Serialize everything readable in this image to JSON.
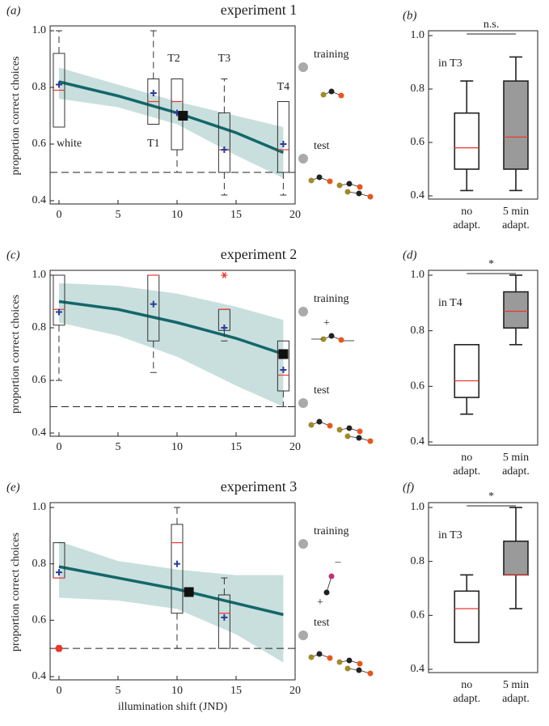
{
  "chart_data": [
    {
      "type": "box",
      "panel_label": "(a)",
      "title": "experiment 1",
      "ylabel": "proportion correct choices",
      "xlim": [
        -0.75,
        20
      ],
      "ylim": [
        0.4,
        1.0
      ],
      "xticks": [
        0,
        5,
        10,
        15,
        20
      ],
      "yticks": [
        0.4,
        0.6,
        0.8,
        {
          "value": 1,
          "label": "1.0"
        }
      ],
      "chance": 0.5,
      "box_color": "#333333",
      "median_color": "#e8392f",
      "mean_color": "#2a3c9a",
      "boxes": [
        {
          "label": "white",
          "x": 0,
          "whisker_low": 0.66,
          "q1": 0.66,
          "median": 0.79,
          "q3": 0.92,
          "whisker_high": 1.0,
          "mean": 0.81
        },
        {
          "label": "T1",
          "x": 8,
          "whisker_low": 0.67,
          "q1": 0.67,
          "median": 0.75,
          "q3": 0.83,
          "whisker_high": 1.0,
          "mean": 0.78
        },
        {
          "label": "T2",
          "x": 10,
          "whisker_low": 0.5,
          "q1": 0.58,
          "median": 0.75,
          "q3": 0.83,
          "whisker_high": 0.83,
          "mean": 0.71
        },
        {
          "label": "T3",
          "x": 14,
          "whisker_low": 0.42,
          "q1": 0.5,
          "median": 0.58,
          "q3": 0.71,
          "whisker_high": 0.83,
          "mean": 0.58
        },
        {
          "label": "T4",
          "x": 19,
          "whisker_low": 0.42,
          "q1": 0.5,
          "median": 0.58,
          "q3": 0.75,
          "whisker_high": 0.75,
          "mean": 0.6
        }
      ],
      "fit": {
        "x": [
          0,
          5,
          10,
          15,
          19
        ],
        "y": [
          0.82,
          0.77,
          0.71,
          0.64,
          0.57
        ],
        "lower": [
          0.76,
          0.73,
          0.67,
          0.56,
          0.48
        ],
        "upper": [
          0.87,
          0.81,
          0.75,
          0.7,
          0.66
        ],
        "color": "#13676a",
        "band_color": "#c8dfdd"
      },
      "highlight": {
        "x": 10.5,
        "y": 0.7
      },
      "schematic": {
        "training": "training",
        "test": "test",
        "signs": []
      }
    },
    {
      "type": "box",
      "panel_label": "(b)",
      "annotation": "in T3",
      "significance": "n.s.",
      "categories": [
        [
          "no",
          "adapt."
        ],
        [
          "5 min",
          "adapt."
        ]
      ],
      "ylim": [
        0.4,
        1.0
      ],
      "yticks": [
        0.4,
        0.6,
        0.8,
        {
          "value": 1,
          "label": "1.0"
        }
      ],
      "box_color": "#222222",
      "median_color": "#e8392f",
      "boxes": [
        {
          "whisker_low": 0.42,
          "q1": 0.5,
          "median": 0.58,
          "q3": 0.71,
          "whisker_high": 0.83,
          "fill": "#ffffff"
        },
        {
          "whisker_low": 0.42,
          "q1": 0.5,
          "median": 0.62,
          "q3": 0.83,
          "whisker_high": 0.92,
          "fill": "#9a9a9a"
        }
      ]
    },
    {
      "type": "box",
      "panel_label": "(c)",
      "title": "experiment 2",
      "ylabel": "proportion correct choices",
      "xlim": [
        -0.75,
        20
      ],
      "ylim": [
        0.4,
        1.0
      ],
      "xticks": [
        0,
        5,
        10,
        15,
        20
      ],
      "yticks": [
        0.4,
        0.6,
        0.8,
        {
          "value": 1,
          "label": "1.0"
        }
      ],
      "chance": 0.5,
      "box_color": "#333333",
      "median_color": "#e8392f",
      "mean_color": "#2a3c9a",
      "boxes": [
        {
          "x": 0,
          "whisker_low": 0.6,
          "q1": 0.81,
          "median": 0.87,
          "q3": 1.0,
          "whisker_high": 1.0,
          "mean": 0.86
        },
        {
          "x": 8,
          "whisker_low": 0.63,
          "q1": 0.75,
          "median": 1.0,
          "q3": 1.0,
          "whisker_high": 1.0,
          "mean": 0.89
        },
        {
          "x": 14,
          "whisker_low": 0.75,
          "q1": 0.79,
          "median": 0.87,
          "q3": 0.87,
          "whisker_high": 0.87,
          "mean": 0.8
        },
        {
          "x": 19,
          "whisker_low": 0.5,
          "q1": 0.56,
          "median": 0.62,
          "q3": 0.75,
          "whisker_high": 0.75,
          "mean": 0.64
        }
      ],
      "outliers": [
        {
          "x": 14,
          "value": 1.0,
          "marker": "asterisk"
        }
      ],
      "outlier_color": "#e8392f",
      "fit": {
        "x": [
          0,
          5,
          10,
          15,
          19
        ],
        "y": [
          0.9,
          0.87,
          0.82,
          0.76,
          0.7
        ],
        "lower": [
          0.82,
          0.77,
          0.69,
          0.58,
          0.5
        ],
        "upper": [
          0.97,
          0.96,
          0.93,
          0.88,
          0.83
        ],
        "color": "#13676a",
        "band_color": "#c8dfdd"
      },
      "highlight": {
        "x": 19,
        "y": 0.7
      },
      "schematic": {
        "training": "training",
        "test": "test",
        "signs": [
          "+"
        ]
      }
    },
    {
      "type": "box",
      "panel_label": "(d)",
      "annotation": "in T4",
      "significance": "*",
      "categories": [
        [
          "no",
          "adapt."
        ],
        [
          "5 min",
          "adapt."
        ]
      ],
      "ylim": [
        0.4,
        1.0
      ],
      "yticks": [
        0.4,
        0.6,
        0.8,
        {
          "value": 1,
          "label": "1.0"
        }
      ],
      "box_color": "#222222",
      "median_color": "#e8392f",
      "boxes": [
        {
          "whisker_low": 0.5,
          "q1": 0.56,
          "median": 0.62,
          "q3": 0.75,
          "whisker_high": 0.75,
          "fill": "#ffffff"
        },
        {
          "whisker_low": 0.75,
          "q1": 0.81,
          "median": 0.87,
          "q3": 0.94,
          "whisker_high": 1.0,
          "fill": "#9a9a9a"
        }
      ]
    },
    {
      "type": "box",
      "panel_label": "(e)",
      "title": "experiment 3",
      "ylabel": "proportion correct choices",
      "xlabel": "illumination shift (JND)",
      "xlim": [
        -0.75,
        20
      ],
      "ylim": [
        0.4,
        1.0
      ],
      "xticks": [
        0,
        5,
        10,
        15,
        20
      ],
      "yticks": [
        0.4,
        0.6,
        0.8,
        {
          "value": 1,
          "label": "1.0"
        }
      ],
      "chance": 0.5,
      "box_color": "#333333",
      "median_color": "#e8392f",
      "mean_color": "#2a3c9a",
      "boxes": [
        {
          "x": 0,
          "whisker_low": 0.75,
          "q1": 0.75,
          "median": 0.75,
          "q3": 0.875,
          "whisker_high": 0.875,
          "mean": 0.77
        },
        {
          "x": 10,
          "whisker_low": 0.5,
          "q1": 0.625,
          "median": 0.875,
          "q3": 0.94,
          "whisker_high": 1.0,
          "mean": 0.8
        },
        {
          "x": 14,
          "whisker_low": 0.5,
          "q1": 0.5,
          "median": 0.625,
          "q3": 0.69,
          "whisker_high": 0.75,
          "mean": 0.61
        }
      ],
      "outliers": [
        {
          "x": 0,
          "value": 0.5,
          "marker": "hexagon"
        }
      ],
      "outlier_color": "#e8392f",
      "fit": {
        "x": [
          0,
          5,
          10,
          15,
          19
        ],
        "y": [
          0.79,
          0.75,
          0.71,
          0.66,
          0.62
        ],
        "lower": [
          0.68,
          0.67,
          0.64,
          0.55,
          0.45
        ],
        "upper": [
          0.88,
          0.81,
          0.78,
          0.76,
          0.76
        ],
        "color": "#13676a",
        "band_color": "#c8dfdd"
      },
      "highlight": {
        "x": 11,
        "y": 0.7
      },
      "schematic": {
        "training": "training",
        "test": "test",
        "signs": [
          "–",
          "+"
        ]
      }
    },
    {
      "type": "box",
      "panel_label": "(f)",
      "annotation": "in T3",
      "significance": "*",
      "categories": [
        [
          "no",
          "adapt."
        ],
        [
          "5 min",
          "adapt."
        ]
      ],
      "ylim": [
        0.4,
        1.0
      ],
      "yticks": [
        0.4,
        0.6,
        0.8,
        {
          "value": 1,
          "label": "1.0"
        }
      ],
      "box_color": "#222222",
      "median_color": "#e8392f",
      "boxes": [
        {
          "whisker_low": 0.5,
          "q1": 0.5,
          "median": 0.625,
          "q3": 0.69,
          "whisker_high": 0.75,
          "fill": "#ffffff"
        },
        {
          "whisker_low": 0.625,
          "q1": 0.75,
          "median": 0.75,
          "q3": 0.875,
          "whisker_high": 1.0,
          "fill": "#9a9a9a"
        }
      ]
    }
  ]
}
